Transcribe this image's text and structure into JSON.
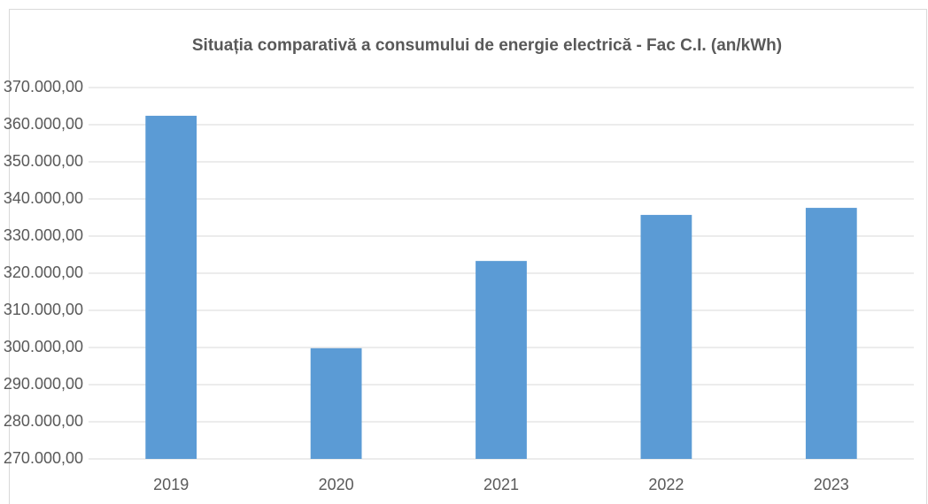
{
  "chart_data": {
    "type": "bar",
    "title": "Situația comparativă a consumului de energie electrică - Fac C.I. (an/kWh)",
    "categories": [
      "2019",
      "2020",
      "2021",
      "2022",
      "2023"
    ],
    "values": [
      362400,
      299800,
      323300,
      335700,
      337600
    ],
    "color": "#5b9bd5",
    "ylim": [
      270000,
      370000
    ],
    "yticks": [
      {
        "value": 270000,
        "label": "270.000,00"
      },
      {
        "value": 280000,
        "label": "280.000,00"
      },
      {
        "value": 290000,
        "label": "290.000,00"
      },
      {
        "value": 300000,
        "label": "300.000,00"
      },
      {
        "value": 310000,
        "label": "310.000,00"
      },
      {
        "value": 320000,
        "label": "320.000,00"
      },
      {
        "value": 330000,
        "label": "330.000,00"
      },
      {
        "value": 340000,
        "label": "340.000,00"
      },
      {
        "value": 350000,
        "label": "350.000,00"
      },
      {
        "value": 360000,
        "label": "360.000,00"
      },
      {
        "value": 370000,
        "label": "370.000,00"
      }
    ],
    "grid": true
  }
}
